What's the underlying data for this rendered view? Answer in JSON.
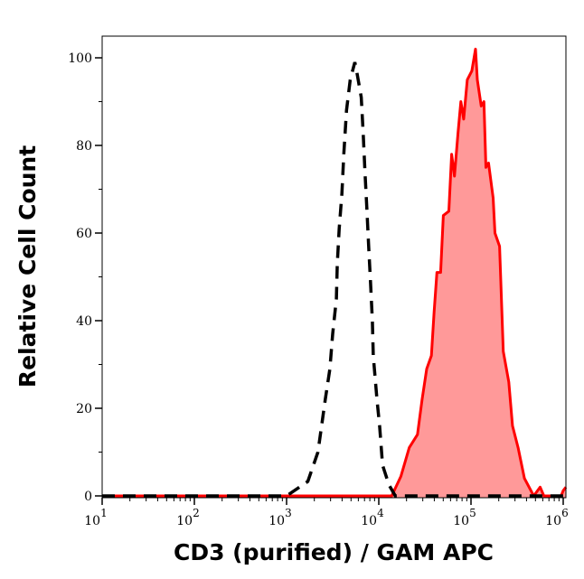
{
  "chart_data": {
    "type": "area",
    "title": "",
    "xlabel": "CD3 (purified) / GAM APC",
    "ylabel": "Relative Cell Count",
    "x_scale": "log",
    "xlim": [
      10,
      1070000
    ],
    "ylim": [
      0,
      105
    ],
    "x_ticks": [
      {
        "base": "10",
        "exp": "1",
        "value": 10
      },
      {
        "base": "10",
        "exp": "2",
        "value": 100
      },
      {
        "base": "10",
        "exp": "3",
        "value": 1000
      },
      {
        "base": "10",
        "exp": "4",
        "value": 10000
      },
      {
        "base": "10",
        "exp": "5",
        "value": 100000
      },
      {
        "base": "10",
        "exp": "6",
        "value": 1000000
      }
    ],
    "y_ticks": [
      "0",
      "20",
      "40",
      "60",
      "80",
      "100"
    ],
    "grid": false,
    "series": [
      {
        "style": "dashed line, no fill",
        "color": "#000000",
        "x": [
          10,
          1000,
          1700.0,
          2190.0,
          2630.0,
          2950.0,
          3160.0,
          3470.0,
          3550.0,
          3720.0,
          3980.0,
          4170.0,
          4470.0,
          4900.0,
          5500.0,
          5750.0,
          6460.0,
          6760.0,
          7080.0,
          7410.0,
          7760.0,
          8130.0,
          8510.0,
          8710.0,
          9550.0,
          10200.0,
          11000.0,
          12900.0,
          15100.0,
          1000000.0
        ],
        "y": [
          0,
          0,
          3.3,
          10,
          22,
          29,
          37,
          45,
          53,
          61,
          69,
          78,
          88,
          95,
          99,
          97,
          91,
          83,
          74,
          66,
          57,
          49,
          40,
          32,
          22,
          16,
          7,
          2.5,
          0,
          0
        ]
      },
      {
        "style": "filled area with solid outline",
        "color": "#ff0000",
        "fill": "#ff9999",
        "x": [
          10,
          13800.0,
          17400.0,
          21400.0,
          26300.0,
          29500.0,
          33100.0,
          37200.0,
          39800.0,
          42700.0,
          46800.0,
          50100.0,
          57500.0,
          61700.0,
          66100.0,
          72400.0,
          77600.0,
          83200.0,
          91200.0,
          102000.0,
          112000.0,
          117000.0,
          129000.0,
          138000.0,
          145000.0,
          155000.0,
          174000.0,
          182000.0,
          204000.0,
          224000.0,
          257000.0,
          282000.0,
          324000.0,
          380000.0,
          479000.0,
          562000.0,
          617000.0,
          950000.0,
          1000000.0,
          1070000.0
        ],
        "y": [
          0,
          0,
          4.5,
          11,
          14,
          22,
          29,
          32,
          42,
          51,
          51,
          64,
          65,
          78,
          73,
          83,
          90,
          86,
          95,
          97,
          102,
          95,
          89,
          90,
          75,
          76,
          68,
          60,
          57,
          33,
          26,
          16,
          11,
          4,
          0,
          2,
          0,
          0,
          1.2,
          2
        ]
      }
    ]
  }
}
